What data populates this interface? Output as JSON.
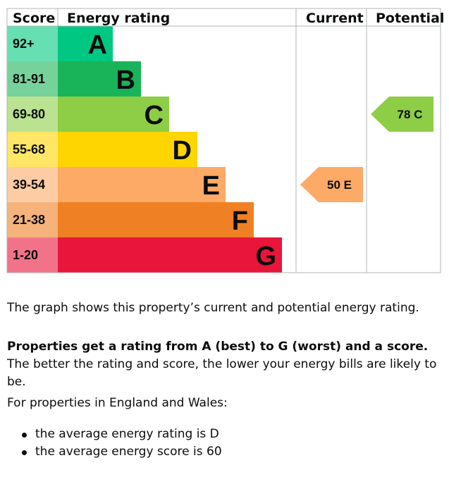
{
  "chart_data": {
    "type": "bar",
    "columns": {
      "score": "Score",
      "rating": "Energy rating",
      "current": "Current",
      "potential": "Potential"
    },
    "bands": [
      {
        "letter": "A",
        "range": "92+",
        "color": "#00c781",
        "score_bg": "#66dfb3"
      },
      {
        "letter": "B",
        "range": "81-91",
        "color": "#19b459",
        "score_bg": "#75d29b"
      },
      {
        "letter": "C",
        "range": "69-80",
        "color": "#8dce46",
        "score_bg": "#bbe290"
      },
      {
        "letter": "D",
        "range": "55-68",
        "color": "#ffd500",
        "score_bg": "#ffe666"
      },
      {
        "letter": "E",
        "range": "39-54",
        "color": "#fcaa65",
        "score_bg": "#fdcca3"
      },
      {
        "letter": "F",
        "range": "21-38",
        "color": "#ef8023",
        "score_bg": "#f5b37b"
      },
      {
        "letter": "G",
        "range": "1-20",
        "color": "#e9153b",
        "score_bg": "#f27389"
      }
    ],
    "current": {
      "score": 50,
      "band": "E",
      "label": "50  E"
    },
    "potential": {
      "score": 78,
      "band": "C",
      "label": "78  C"
    }
  },
  "text": {
    "summary": "The graph shows this property’s current and potential energy rating.",
    "rating_bold": "Properties get a rating from A (best) to G (worst) and a score.",
    "rating_rest": " The better the rating and score, the lower your energy bills are likely to be.",
    "region": "For properties in England and Wales:",
    "averages": [
      "the average energy rating is D",
      "the average energy score is 60"
    ]
  }
}
